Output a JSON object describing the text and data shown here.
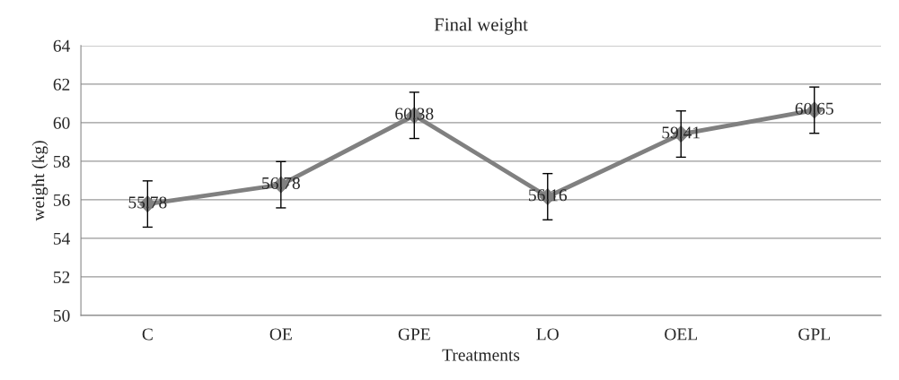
{
  "chart_data": {
    "type": "line",
    "title": "Final weight",
    "xlabel": "Treatments",
    "ylabel": "weight (kg)",
    "categories": [
      "C",
      "OE",
      "GPE",
      "LO",
      "OEL",
      "GPL"
    ],
    "values": [
      55.78,
      56.78,
      60.38,
      56.16,
      59.41,
      60.65
    ],
    "errors": [
      1.2,
      1.2,
      1.2,
      1.2,
      1.2,
      1.2
    ],
    "color": "#808080",
    "marker": "diamond",
    "line_style": "solid",
    "ylim": [
      50,
      64
    ],
    "yticks": [
      50,
      52,
      54,
      56,
      58,
      60,
      62,
      64
    ],
    "grid": "y",
    "data_labels": true
  }
}
